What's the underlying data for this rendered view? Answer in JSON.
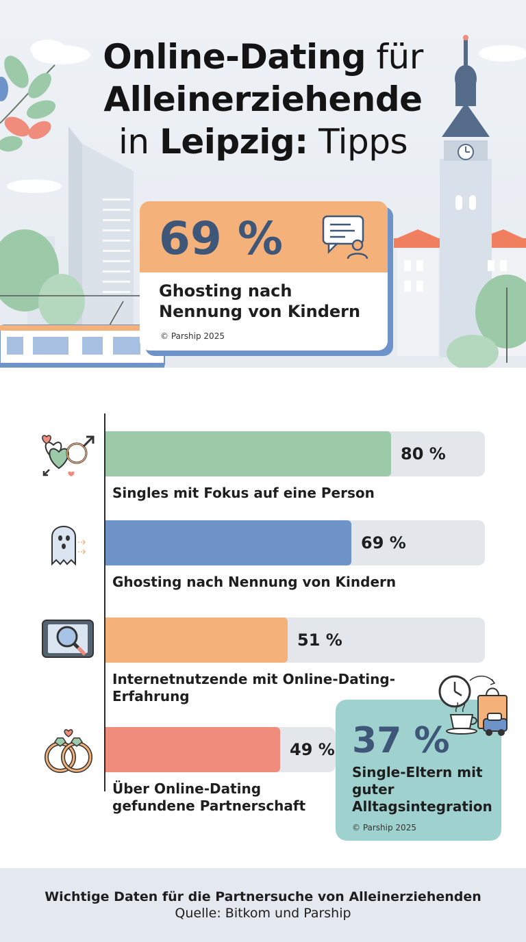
{
  "header": {
    "title_line1_bold": "Online-Dating",
    "title_line1_rest": " für",
    "title_line2": "Alleinerziehende",
    "title_line3_pre": "in ",
    "title_line3_bold": "Leipzig:",
    "title_line3_rest": " Tipps"
  },
  "hero_card": {
    "value": "69 %",
    "label": "Ghosting nach Nennung von Kindern",
    "source": "© Parship 2025",
    "icon": "chat-person-icon"
  },
  "chart_data": {
    "type": "bar",
    "orientation": "horizontal",
    "xlim": [
      0,
      100
    ],
    "unit": "%",
    "categories": [
      "Singles mit Fokus auf eine Person",
      "Ghosting nach Nennung von Kindern",
      "Internetnutzende mit Online-Dating-Erfahrung",
      "Über Online-Dating gefundene Partnerschaft"
    ],
    "values": [
      80,
      69,
      51,
      49
    ],
    "value_labels": [
      "80 %",
      "69 %",
      "51 %",
      "49 %"
    ],
    "colors": [
      "#9ccaa9",
      "#6d93c9",
      "#f4b27a",
      "#ef8c7c"
    ],
    "icons": [
      "hearts-gender-icon",
      "ghost-icon",
      "tablet-magnifier-icon",
      "rings-icon"
    ]
  },
  "side_card": {
    "value": "37 %",
    "label": "Single-Eltern mit guter Alltagsintegration",
    "source": "© Parship 2025",
    "icon": "daily-life-icon"
  },
  "footer": {
    "main": "Wichtige Daten für die Partnersuche von Alleinerziehenden",
    "source": "Quelle: Bitkom und Parship"
  }
}
